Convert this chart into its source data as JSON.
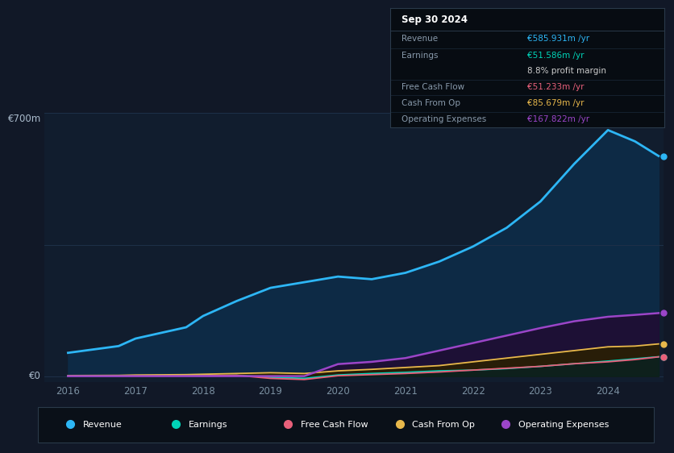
{
  "bg_color": "#111827",
  "plot_bg_color": "#111d2e",
  "grid_color": "#1e3048",
  "years": [
    2016,
    2016.75,
    2017,
    2017.75,
    2018,
    2018.5,
    2019,
    2019.5,
    2020,
    2020.5,
    2021,
    2021.5,
    2022,
    2022.5,
    2023,
    2023.5,
    2024,
    2024.4,
    2024.75
  ],
  "revenue": [
    62,
    80,
    100,
    130,
    160,
    200,
    235,
    250,
    265,
    258,
    275,
    305,
    345,
    395,
    465,
    565,
    655,
    625,
    586
  ],
  "earnings": [
    0.5,
    0.5,
    1,
    1,
    1,
    2,
    -3,
    -6,
    3,
    7,
    10,
    14,
    16,
    20,
    26,
    33,
    40,
    46,
    51.6
  ],
  "free_cash_flow": [
    0.5,
    0.5,
    0.5,
    1,
    1,
    2,
    -6,
    -9,
    1,
    4,
    7,
    11,
    16,
    21,
    26,
    33,
    38,
    44,
    51.2
  ],
  "cash_from_op": [
    1.5,
    2,
    3,
    4,
    5,
    7,
    9,
    7,
    14,
    18,
    23,
    28,
    38,
    48,
    58,
    68,
    78,
    80,
    85.7
  ],
  "operating_expenses": [
    0,
    0,
    0,
    0,
    0,
    0,
    0,
    0,
    32,
    38,
    48,
    68,
    88,
    108,
    128,
    146,
    158,
    163,
    167.8
  ],
  "revenue_color": "#2db6f5",
  "earnings_color": "#00d4b8",
  "fcf_color": "#e8607a",
  "cashop_color": "#e8b84b",
  "opex_color": "#9b45c8",
  "revenue_fill": "#0d2a45",
  "opex_fill": "#1e0f35",
  "cashop_fill": "#2a2000",
  "fcf_fill": "#2a0f18",
  "earnings_fill": "#052520",
  "ylim_max": 700,
  "ylabel_top": "€700m",
  "ylabel_zero": "€0",
  "info_box": {
    "title": "Sep 30 2024",
    "revenue_label": "Revenue",
    "revenue_val": "€585.931m /yr",
    "revenue_color": "#2db6f5",
    "earnings_label": "Earnings",
    "earnings_val": "€51.586m /yr",
    "earnings_color": "#00d4b8",
    "margin_label": "8.8% profit margin",
    "margin_color": "#cccccc",
    "fcf_label": "Free Cash Flow",
    "fcf_val": "€51.233m /yr",
    "fcf_color": "#e8607a",
    "cashop_label": "Cash From Op",
    "cashop_val": "€85.679m /yr",
    "cashop_color": "#e8b84b",
    "opex_label": "Operating Expenses",
    "opex_val": "€167.822m /yr",
    "opex_color": "#9b45c8"
  },
  "legend": [
    {
      "label": "Revenue",
      "color": "#2db6f5"
    },
    {
      "label": "Earnings",
      "color": "#00d4b8"
    },
    {
      "label": "Free Cash Flow",
      "color": "#e8607a"
    },
    {
      "label": "Cash From Op",
      "color": "#e8b84b"
    },
    {
      "label": "Operating Expenses",
      "color": "#9b45c8"
    }
  ],
  "xticks": [
    2016,
    2017,
    2018,
    2019,
    2020,
    2021,
    2022,
    2023,
    2024
  ],
  "figsize": [
    8.21,
    5.6
  ],
  "dpi": 100
}
